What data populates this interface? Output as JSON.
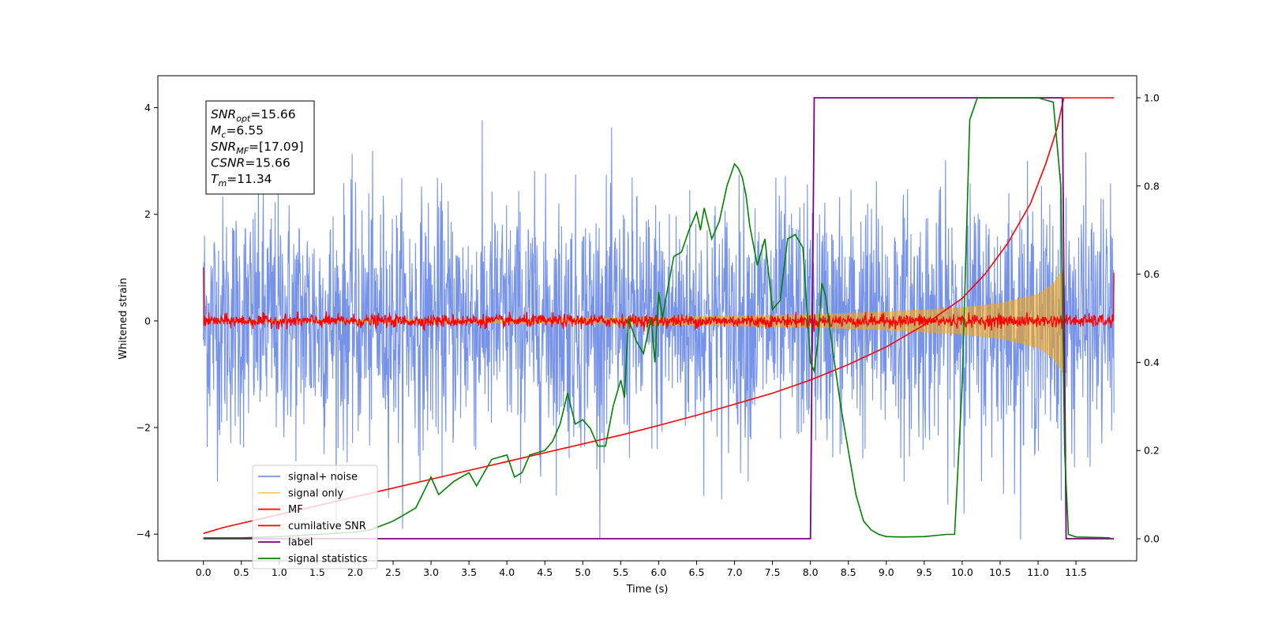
{
  "chart_data": {
    "type": "line",
    "xlabel": "Time (s)",
    "ylabel": "Whitened strain",
    "xlim": [
      -0.6,
      12.3
    ],
    "ylim_left": [
      -4.5,
      4.6
    ],
    "ylim_right": [
      -0.05,
      1.05
    ],
    "x_ticks": [
      "0.0",
      "0.5",
      "1.0",
      "1.5",
      "2.0",
      "2.5",
      "3.0",
      "3.5",
      "4.0",
      "4.5",
      "5.0",
      "5.5",
      "6.0",
      "6.5",
      "7.0",
      "7.5",
      "8.0",
      "8.5",
      "9.0",
      "9.5",
      "10.0",
      "10.5",
      "11.0",
      "11.5"
    ],
    "y_ticks_left": [
      "4",
      "2",
      "0",
      "−2",
      "−4"
    ],
    "y_ticks_right": [
      "1.0",
      "0.8",
      "0.6",
      "0.4",
      "0.2",
      "0.0"
    ],
    "grid": false,
    "legend_placement": "lower-left",
    "colors": {
      "signal_noise": "#4169e1",
      "signal_only": "#ffa500",
      "mf": "#ff0000",
      "cumulative_snr": "#ff0000",
      "label": "#800080",
      "signal_statistics": "#008000"
    },
    "series": [
      {
        "name": "signal+ noise",
        "axis": "left",
        "x_start": 0.0,
        "x_end": 12.0,
        "amplitude_std": 1.0,
        "description_values": "gaussian noise ~ N(0,1)"
      },
      {
        "name": "signal only",
        "axis": "left",
        "x": [
          0,
          4,
          6,
          8,
          9,
          10,
          10.5,
          11,
          11.2,
          11.34
        ],
        "envelope": [
          0.01,
          0.04,
          0.07,
          0.12,
          0.17,
          0.25,
          0.33,
          0.5,
          0.7,
          1.0
        ]
      },
      {
        "name": "MF",
        "axis": "left",
        "x_start": 0.0,
        "x_end": 12.0,
        "center": 0.0,
        "spread": 0.06,
        "start_value": 1.0,
        "end_value": 0.9
      },
      {
        "name": "cumilative SNR",
        "axis": "right",
        "x": [
          0,
          0.25,
          0.5,
          1,
          1.5,
          2,
          2.5,
          3,
          3.5,
          4,
          4.5,
          5,
          5.5,
          6,
          6.5,
          7,
          7.5,
          8,
          8.5,
          9,
          9.5,
          10,
          10.3,
          10.6,
          10.9,
          11.1,
          11.25,
          11.34,
          11.4,
          12.0
        ],
        "values": [
          0.012,
          0.025,
          0.035,
          0.055,
          0.075,
          0.095,
          0.115,
          0.135,
          0.155,
          0.175,
          0.195,
          0.215,
          0.235,
          0.257,
          0.28,
          0.305,
          0.33,
          0.36,
          0.395,
          0.435,
          0.485,
          0.545,
          0.6,
          0.67,
          0.76,
          0.85,
          0.93,
          1.0,
          1.0,
          1.0
        ]
      },
      {
        "name": "label",
        "axis": "right",
        "x": [
          0,
          8.0,
          8.05,
          11.32,
          11.37,
          12.0
        ],
        "values": [
          0,
          0,
          1,
          1,
          0,
          0
        ]
      },
      {
        "name": "signal statistics",
        "axis": "right",
        "x": [
          0,
          0.5,
          1,
          1.5,
          2,
          2.2,
          2.5,
          2.8,
          3.0,
          3.1,
          3.3,
          3.5,
          3.6,
          3.8,
          4.0,
          4.1,
          4.2,
          4.3,
          4.5,
          4.6,
          4.7,
          4.8,
          4.9,
          5.0,
          5.1,
          5.2,
          5.3,
          5.4,
          5.5,
          5.55,
          5.6,
          5.7,
          5.8,
          5.9,
          5.95,
          6.0,
          6.05,
          6.1,
          6.2,
          6.3,
          6.4,
          6.5,
          6.55,
          6.6,
          6.7,
          6.8,
          6.9,
          7.0,
          7.05,
          7.1,
          7.15,
          7.2,
          7.3,
          7.4,
          7.5,
          7.6,
          7.7,
          7.8,
          7.9,
          8.0,
          8.05,
          8.1,
          8.15,
          8.2,
          8.3,
          8.4,
          8.5,
          8.6,
          8.7,
          8.8,
          8.9,
          9.0,
          9.2,
          9.5,
          9.8,
          9.9,
          10.0,
          10.1,
          10.2,
          10.3,
          10.5,
          10.8,
          11.0,
          11.2,
          11.3,
          11.35,
          11.4,
          11.5,
          11.8,
          11.95
        ],
        "values": [
          0.002,
          0.002,
          0.005,
          0.01,
          0.015,
          0.02,
          0.04,
          0.07,
          0.14,
          0.1,
          0.13,
          0.15,
          0.12,
          0.18,
          0.19,
          0.14,
          0.15,
          0.19,
          0.2,
          0.22,
          0.26,
          0.33,
          0.26,
          0.27,
          0.25,
          0.21,
          0.21,
          0.3,
          0.36,
          0.32,
          0.5,
          0.45,
          0.42,
          0.5,
          0.4,
          0.56,
          0.5,
          0.55,
          0.64,
          0.65,
          0.7,
          0.74,
          0.7,
          0.75,
          0.68,
          0.72,
          0.8,
          0.85,
          0.84,
          0.82,
          0.78,
          0.71,
          0.62,
          0.68,
          0.52,
          0.54,
          0.68,
          0.69,
          0.66,
          0.4,
          0.38,
          0.45,
          0.58,
          0.55,
          0.42,
          0.3,
          0.2,
          0.1,
          0.04,
          0.02,
          0.01,
          0.005,
          0.004,
          0.005,
          0.01,
          0.01,
          0.35,
          0.95,
          1.0,
          1.0,
          1.0,
          1.0,
          1.0,
          0.99,
          0.8,
          0.2,
          0.01,
          0.004,
          0.003,
          0.002
        ]
      }
    ],
    "annotation": {
      "lines": [
        {
          "var": "SNR",
          "sub": "opt",
          "value": "=15.66"
        },
        {
          "var": "M",
          "sub": "c",
          "value": "=6.55"
        },
        {
          "var": "SNR",
          "sub": "MF",
          "value": "=[17.09]"
        },
        {
          "var": "CSNR",
          "sub": "",
          "value": "=15.66"
        },
        {
          "var": "T",
          "sub": "m",
          "value": "=11.34"
        }
      ]
    }
  }
}
